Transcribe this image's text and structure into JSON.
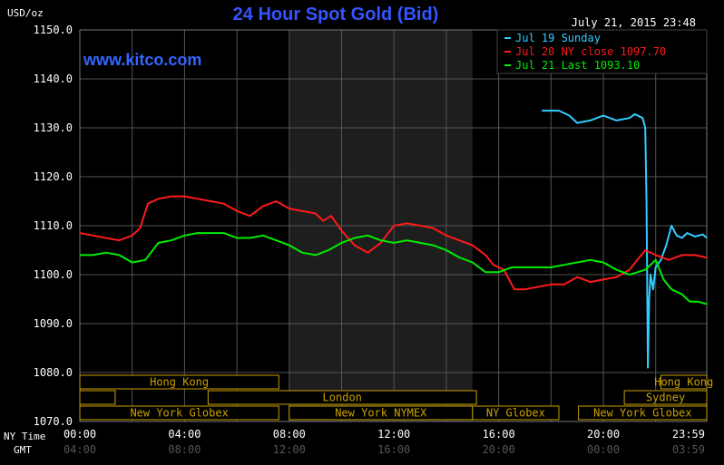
{
  "chart_data": {
    "type": "line",
    "title": "24 Hour Spot Gold (Bid)",
    "unit_label": "USD/oz",
    "timestamp": "July 21, 2015 23:48",
    "watermark": "www.kitco.com",
    "ylim": [
      1070,
      1150
    ],
    "yticks": [
      "1150.0",
      "1140.0",
      "1130.0",
      "1120.0",
      "1110.0",
      "1100.0",
      "1090.0",
      "1080.0",
      "1070.0"
    ],
    "x_row_labels": {
      "ny": "NY Time",
      "gmt": "GMT"
    },
    "x_ticks_ny": [
      "00:00",
      "04:00",
      "08:00",
      "12:00",
      "16:00",
      "20:00",
      "23:59"
    ],
    "x_ticks_gmt": [
      "04:00",
      "08:00",
      "12:00",
      "16:00",
      "20:00",
      "00:00",
      "03:59"
    ],
    "grid": true,
    "legend_position": "top-right",
    "colors": {
      "sunday": "#33ccff",
      "ny_close": "#ff1a1a",
      "last": "#00ee00",
      "grid": "#555555",
      "axis_text": "#ffffff",
      "title": "#3355ff",
      "watermark": "#3366ff",
      "session": "#c8a000",
      "shade": "#1e1e1e"
    },
    "series": [
      {
        "name": "Jul 19 Sunday",
        "legend": "Jul 19 Sunday",
        "color": "#33ccff",
        "x": [
          17.65,
          18.3,
          18.7,
          19.0,
          19.5,
          20.0,
          20.5,
          21.0,
          21.2,
          21.5,
          21.6,
          21.65,
          21.7,
          21.75,
          21.8,
          21.9,
          22.0,
          22.2,
          22.4,
          22.6,
          22.8,
          23.0,
          23.2,
          23.5,
          23.8,
          23.95
        ],
        "y": [
          1133.5,
          1133.5,
          1132.5,
          1131.0,
          1131.5,
          1132.5,
          1131.5,
          1132.0,
          1132.8,
          1132.0,
          1130.0,
          1115.0,
          1081.0,
          1095.0,
          1100.0,
          1097.0,
          1101.5,
          1103.0,
          1106.0,
          1110.0,
          1108.0,
          1107.5,
          1108.5,
          1107.8,
          1108.2,
          1107.5
        ]
      },
      {
        "name": "Jul 20 NY close 1097.70",
        "legend": "Jul 20 NY close 1097.70",
        "color": "#ff1a1a",
        "x": [
          0.0,
          0.5,
          1.0,
          1.5,
          2.0,
          2.3,
          2.6,
          3.0,
          3.5,
          4.0,
          4.5,
          5.0,
          5.5,
          6.0,
          6.5,
          7.0,
          7.5,
          8.0,
          8.5,
          9.0,
          9.3,
          9.6,
          10.0,
          10.5,
          11.0,
          11.5,
          12.0,
          12.5,
          13.0,
          13.5,
          14.0,
          14.5,
          15.0,
          15.5,
          15.8,
          16.2,
          16.6,
          17.0,
          17.5,
          18.0,
          18.5,
          19.0,
          19.5,
          20.0,
          20.5,
          21.0,
          21.3,
          21.6,
          22.0,
          22.5,
          23.0,
          23.5,
          23.95
        ],
        "y": [
          1108.5,
          1108.0,
          1107.5,
          1107.0,
          1108.0,
          1109.5,
          1114.5,
          1115.5,
          1116.0,
          1116.0,
          1115.5,
          1115.0,
          1114.5,
          1113.0,
          1112.0,
          1114.0,
          1115.0,
          1113.5,
          1113.0,
          1112.5,
          1111.0,
          1112.0,
          1109.0,
          1106.0,
          1104.5,
          1106.5,
          1110.0,
          1110.5,
          1110.0,
          1109.5,
          1108.0,
          1107.0,
          1106.0,
          1104.0,
          1102.0,
          1101.0,
          1097.0,
          1097.0,
          1097.5,
          1098.0,
          1098.0,
          1099.5,
          1098.5,
          1099.0,
          1099.5,
          1101.0,
          1103.0,
          1105.0,
          1104.0,
          1103.0,
          1104.0,
          1104.0,
          1103.5
        ]
      },
      {
        "name": "Jul 21 Last 1093.10",
        "legend": "Jul 21 Last 1093.10",
        "color": "#00ee00",
        "x": [
          0.0,
          0.5,
          1.0,
          1.5,
          2.0,
          2.5,
          3.0,
          3.5,
          4.0,
          4.5,
          5.0,
          5.5,
          6.0,
          6.5,
          7.0,
          7.5,
          8.0,
          8.5,
          9.0,
          9.5,
          10.0,
          10.5,
          11.0,
          11.5,
          12.0,
          12.5,
          13.0,
          13.5,
          14.0,
          14.5,
          15.0,
          15.5,
          16.0,
          16.5,
          17.0,
          17.5,
          18.0,
          18.5,
          19.0,
          19.5,
          20.0,
          20.5,
          21.0,
          21.3,
          21.6,
          22.0,
          22.3,
          22.6,
          23.0,
          23.3,
          23.6,
          23.95
        ],
        "y": [
          1104.0,
          1104.0,
          1104.5,
          1104.0,
          1102.5,
          1103.0,
          1106.5,
          1107.0,
          1108.0,
          1108.5,
          1108.5,
          1108.5,
          1107.5,
          1107.5,
          1108.0,
          1107.0,
          1106.0,
          1104.5,
          1104.0,
          1105.0,
          1106.5,
          1107.5,
          1108.0,
          1107.0,
          1106.5,
          1107.0,
          1106.5,
          1106.0,
          1105.0,
          1103.5,
          1102.5,
          1100.5,
          1100.5,
          1101.5,
          1101.5,
          1101.5,
          1101.5,
          1102.0,
          1102.5,
          1103.0,
          1102.5,
          1101.0,
          1100.0,
          1100.5,
          1101.0,
          1103.0,
          1099.0,
          1097.0,
          1096.0,
          1094.5,
          1094.5,
          1094.0
        ]
      }
    ],
    "shaded_range": [
      8.0,
      15.0
    ],
    "sessions": [
      {
        "label": "Hong Kong",
        "row": 0,
        "start": 0.0,
        "end": 7.6
      },
      {
        "label": "Hong Kong",
        "row": 0,
        "start": 22.2,
        "end": 23.95
      },
      {
        "label": "",
        "row": 1,
        "start": 0.0,
        "end": 1.35
      },
      {
        "label": "London",
        "row": 1,
        "start": 4.9,
        "end": 15.15
      },
      {
        "label": "Sydney",
        "row": 1,
        "start": 20.8,
        "end": 23.95
      },
      {
        "label": "New York Globex",
        "row": 2,
        "start": 0.0,
        "end": 7.6
      },
      {
        "label": "New York NYMEX",
        "row": 2,
        "start": 8.0,
        "end": 15.0
      },
      {
        "label": "NY Globex",
        "row": 2,
        "start": 15.0,
        "end": 18.3
      },
      {
        "label": "New York Globex",
        "row": 2,
        "start": 19.05,
        "end": 23.95
      }
    ]
  }
}
